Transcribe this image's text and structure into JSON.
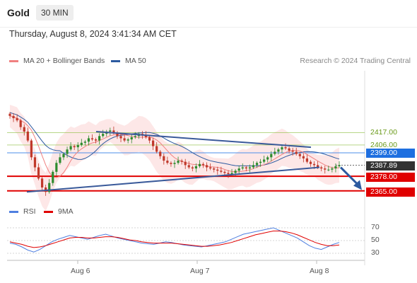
{
  "header": {
    "title": "Gold",
    "timeframe": "30 MIN"
  },
  "datetime": "Thursday, August 8, 2024 3:41:34 AM CET",
  "credit": "Research © 2024 Trading Central",
  "legend": {
    "ma20": {
      "label": "MA 20 + Bollinger Bands",
      "color": "#f08080"
    },
    "ma50": {
      "label": "MA 50",
      "color": "#2c5aa0"
    },
    "rsi": {
      "label": "RSI",
      "color": "#4f7fe0"
    },
    "ma9": {
      "label": "9MA",
      "color": "#e00000"
    }
  },
  "levels": {
    "l2417": {
      "value": 2417.0,
      "text": "2417.00",
      "color": "#6a9a1a"
    },
    "l2406": {
      "value": 2406.0,
      "text": "2406.00",
      "color": "#6a9a1a"
    },
    "l2399": {
      "value": 2399.0,
      "text": "2399.00",
      "color": "#1e6fe0"
    },
    "current": {
      "value": 2387.89,
      "text": "2387.89",
      "color": "#333333"
    },
    "l2378": {
      "value": 2378.0,
      "text": "2378.00",
      "color": "#e00000"
    },
    "l2365": {
      "value": 2365.0,
      "text": "2365.00",
      "color": "#e00000"
    }
  },
  "rsi_axis": {
    "t70": "70",
    "t50": "50",
    "t30": "30"
  },
  "x_axis": {
    "aug6": "Aug 6",
    "aug7": "Aug 7",
    "aug8": "Aug 8"
  },
  "chart_data": {
    "type": "candlestick",
    "instrument": "Gold",
    "interval": "30 MIN",
    "price_range": [
      2360,
      2440
    ],
    "x_ticks": [
      "Aug 6",
      "Aug 7",
      "Aug 8"
    ],
    "close_series_approx": [
      2432,
      2430,
      2428,
      2422,
      2418,
      2410,
      2395,
      2386,
      2376,
      2368,
      2364,
      2372,
      2382,
      2390,
      2395,
      2398,
      2402,
      2405,
      2404,
      2406,
      2408,
      2409,
      2412,
      2411,
      2410,
      2414,
      2416,
      2418,
      2419,
      2417,
      2414,
      2412,
      2410,
      2411,
      2413,
      2414,
      2416,
      2415,
      2413,
      2410,
      2405,
      2400,
      2396,
      2392,
      2390,
      2389,
      2390,
      2392,
      2391,
      2388,
      2386,
      2385,
      2387,
      2389,
      2388,
      2386,
      2385,
      2384,
      2383,
      2382,
      2381,
      2380,
      2381,
      2383,
      2385,
      2386,
      2385,
      2386,
      2388,
      2390,
      2391,
      2393,
      2395,
      2398,
      2400,
      2402,
      2404,
      2403,
      2401,
      2400,
      2398,
      2396,
      2394,
      2391,
      2389,
      2388,
      2386,
      2385,
      2384,
      2384,
      2385,
      2387,
      2388
    ],
    "trendlines": [
      {
        "name": "upper",
        "from_index": 39,
        "to_index": 145,
        "from_price": 2418,
        "to_price": 2404
      },
      {
        "name": "lower",
        "from_index": 0,
        "to_index": 146,
        "from_price": 2364,
        "to_price": 2386
      }
    ],
    "forecast_arrow": {
      "from_price": 2386,
      "to_price": 2367
    },
    "rsi": {
      "axis_ticks": [
        70,
        50,
        30
      ],
      "values": [
        46,
        44,
        40,
        35,
        32,
        36,
        42,
        48,
        52,
        55,
        58,
        56,
        54,
        52,
        55,
        58,
        60,
        57,
        54,
        52,
        50,
        48,
        46,
        45,
        44,
        46,
        48,
        47,
        45,
        43,
        42,
        41,
        40,
        42,
        44,
        46,
        48,
        52,
        56,
        60,
        62,
        64,
        66,
        68,
        70,
        66,
        62,
        58,
        54,
        48,
        42,
        38,
        36,
        40,
        44,
        47
      ],
      "ma9_values": [
        48,
        46,
        44,
        41,
        39,
        40,
        42,
        45,
        48,
        51,
        54,
        55,
        55,
        54,
        54,
        55,
        56,
        56,
        55,
        53,
        51,
        50,
        48,
        47,
        46,
        46,
        46,
        46,
        45,
        44,
        43,
        42,
        41,
        41,
        42,
        43,
        45,
        47,
        50,
        53,
        56,
        59,
        61,
        63,
        65,
        65,
        64,
        62,
        59,
        55,
        51,
        47,
        44,
        42,
        42,
        43
      ]
    }
  }
}
